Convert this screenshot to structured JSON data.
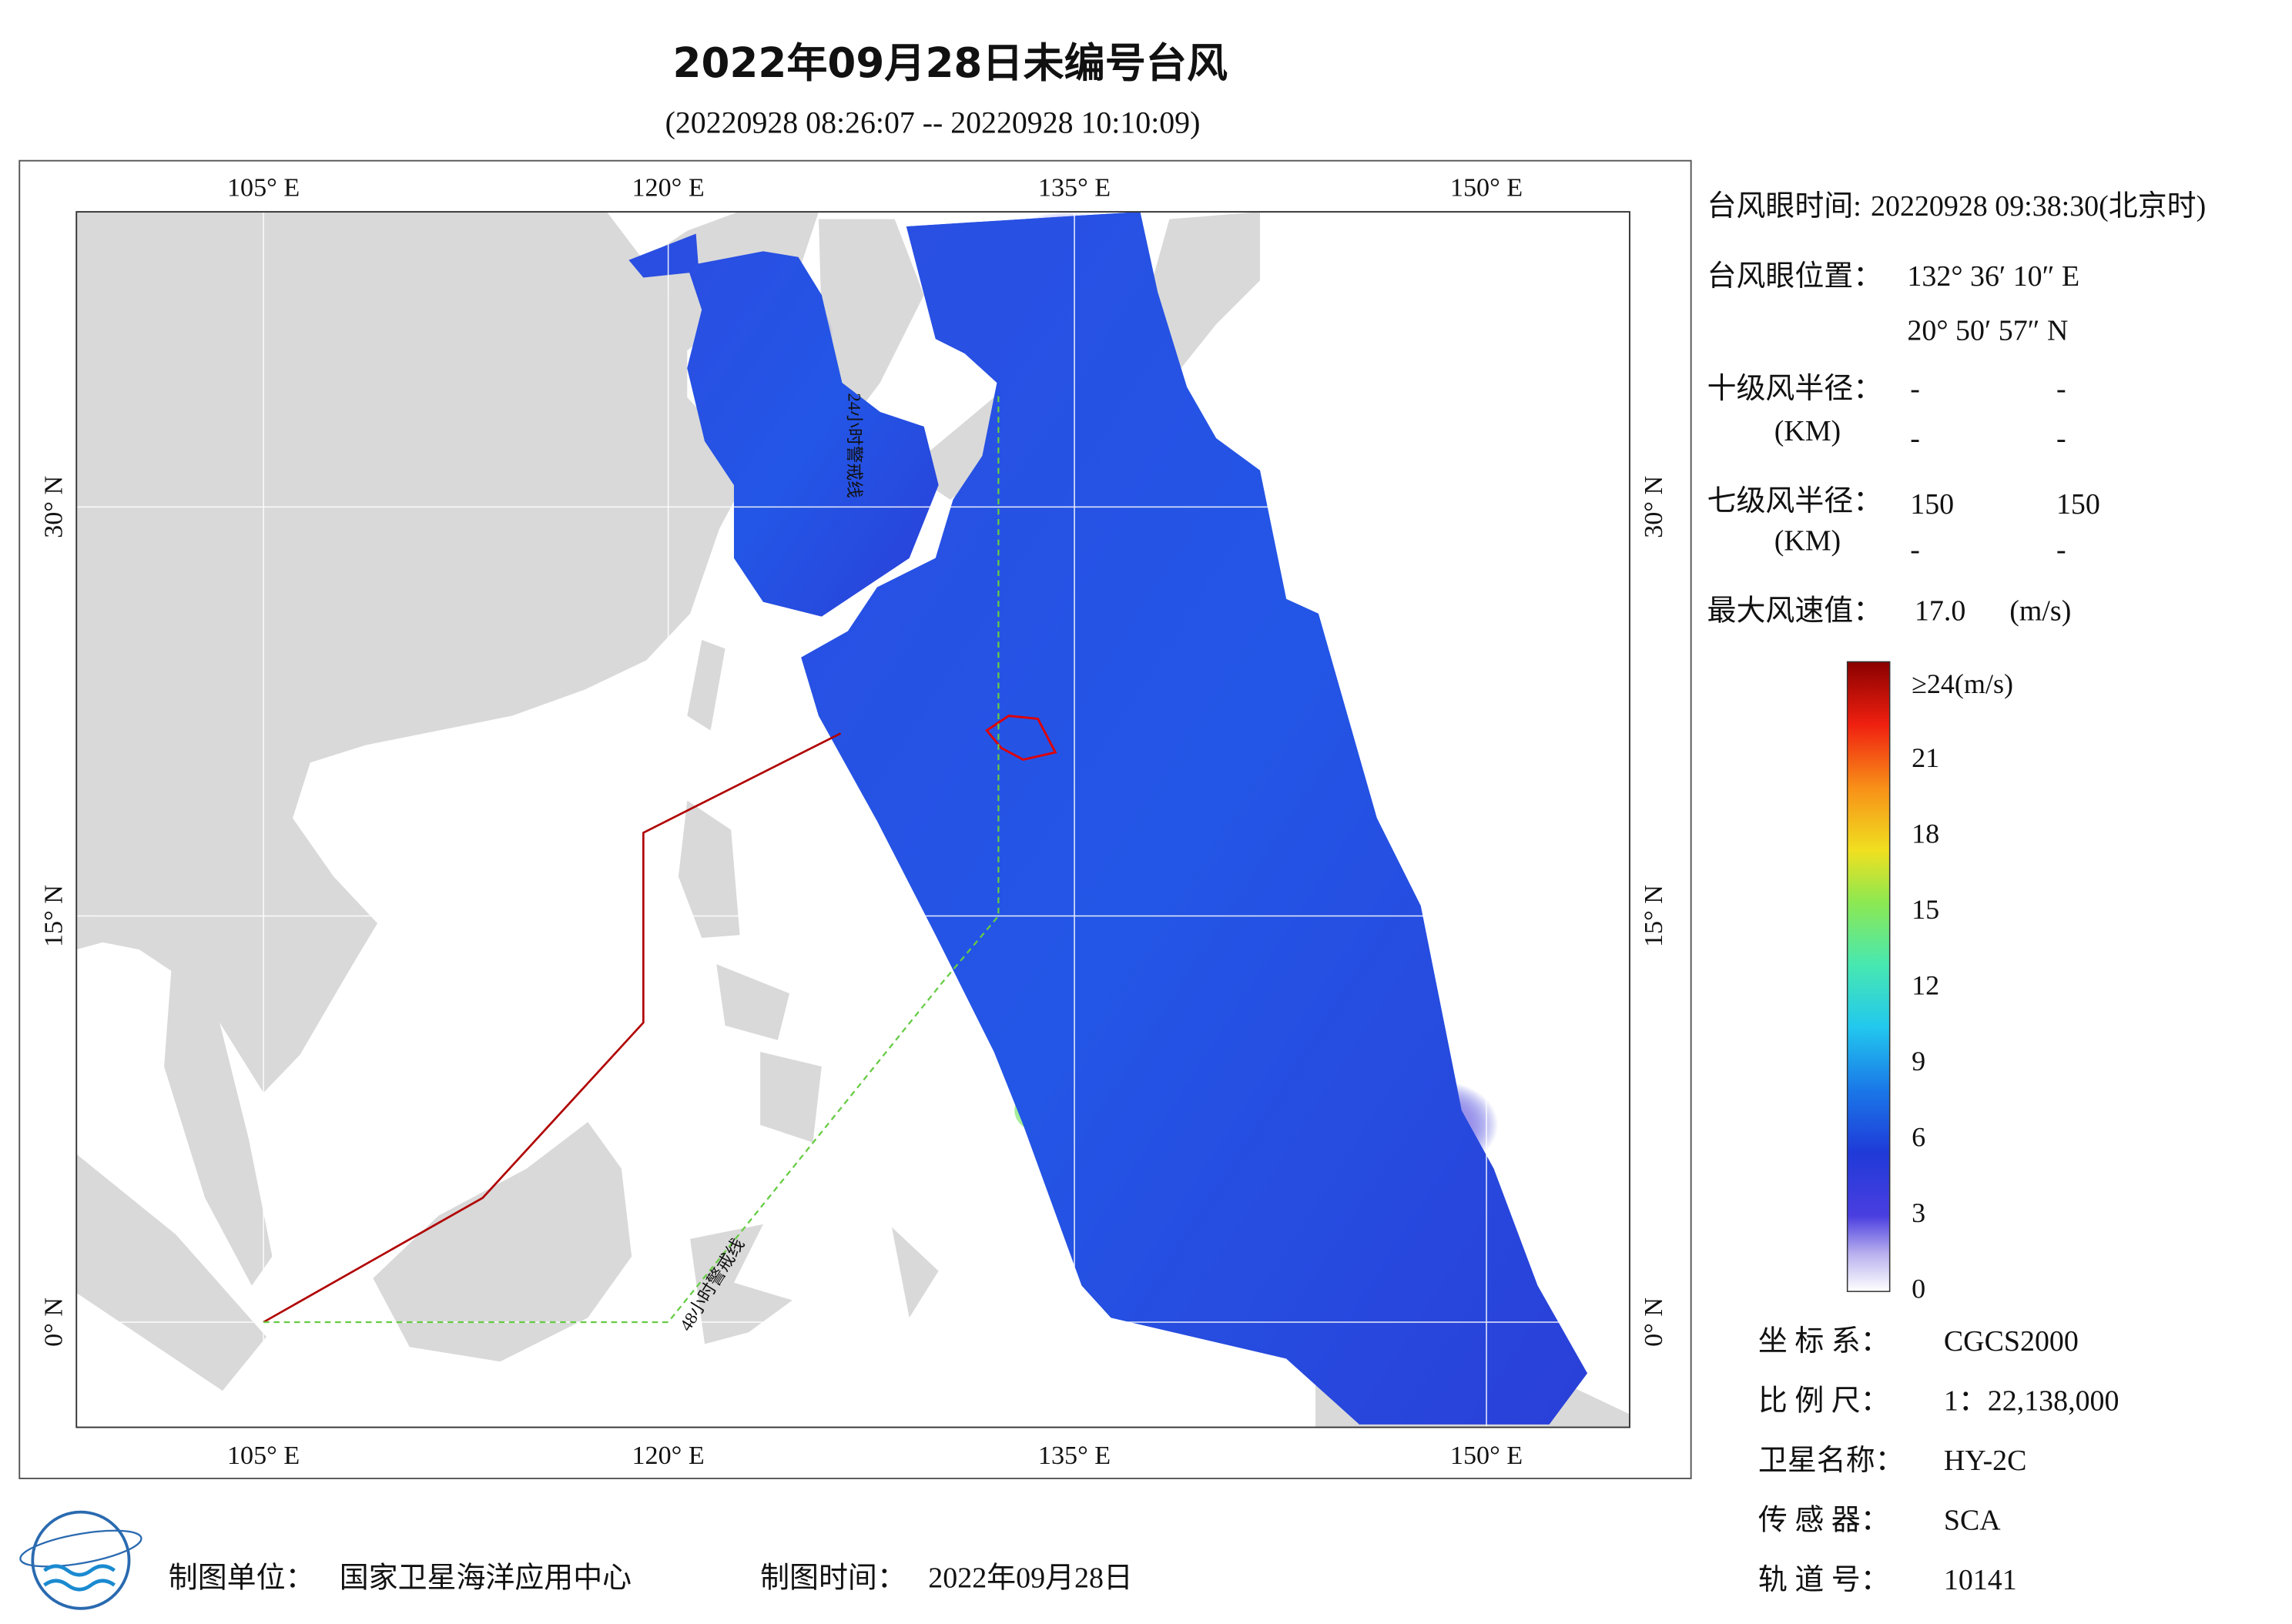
{
  "header": {
    "title": "2022年09月28日未编号台风",
    "subtitle": "(20220928 08:26:07 -- 20220928 10:10:09)"
  },
  "map": {
    "lon_labels": [
      "105° E",
      "120° E",
      "135° E",
      "150° E"
    ],
    "lat_labels": [
      "0° N",
      "15° N",
      "30° N"
    ],
    "line_labels": [
      "24小时警戒线",
      "48小时警戒线"
    ]
  },
  "typhoon": {
    "eye_time": {
      "label": "台风眼时间:",
      "value": "20220928 09:38:30(北京时)"
    },
    "eye_position": {
      "label": "台风眼位置：",
      "lon": "132° 36′ 10″ E",
      "lat": "20° 50′ 57″ N"
    },
    "force10_radius": {
      "label": "十级风半径：",
      "unit": "(KM)",
      "values": [
        [
          "-",
          "-"
        ],
        [
          "-",
          "-"
        ]
      ]
    },
    "force7_radius": {
      "label": "七级风半径：",
      "unit": "(KM)",
      "values": [
        [
          150,
          150
        ],
        [
          "-",
          "-"
        ]
      ]
    },
    "max_wind": {
      "label": "最大风速值：",
      "value": "17.0",
      "unit": "(m/s)"
    }
  },
  "colorbar": {
    "labels": [
      0,
      3,
      6,
      9,
      12,
      15,
      18,
      21,
      "≥24(m/s)"
    ]
  },
  "product": {
    "rows": [
      {
        "label": "坐 标 系：",
        "value": "CGCS2000"
      },
      {
        "label": "比 例 尺：",
        "value": "1：22,138,000"
      },
      {
        "label": "卫星名称：",
        "value": "HY-2C"
      },
      {
        "label": "传 感 器：",
        "value": "SCA"
      },
      {
        "label": "轨 道 号：",
        "value": "10141"
      }
    ]
  },
  "footer": {
    "unit_label": "制图单位：",
    "unit": "国家卫星海洋应用中心",
    "time_label": "制图时间：",
    "time": "2022年09月28日"
  }
}
